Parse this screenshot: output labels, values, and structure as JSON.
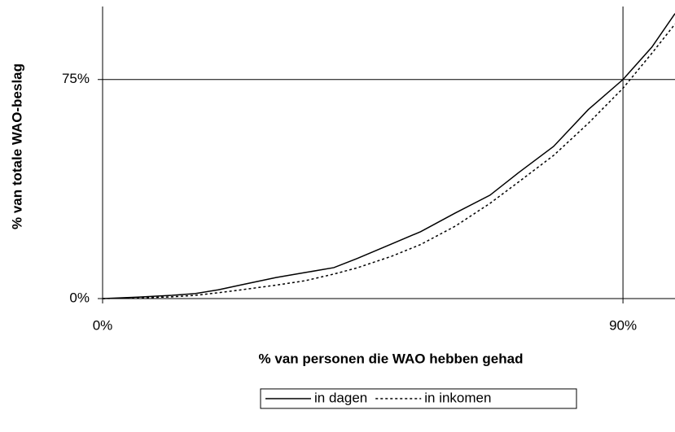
{
  "chart_data": {
    "type": "line",
    "x_label": "% van personen die WAO hebben gehad",
    "y_label": "% van totale WAO-beslag",
    "x": [
      0,
      6,
      12,
      16,
      20,
      24,
      30,
      35,
      40,
      44,
      50,
      55,
      61,
      67,
      72,
      78,
      84,
      90,
      95,
      99
    ],
    "series": [
      {
        "name": "in dagen",
        "color": "#000000",
        "dash": false,
        "values": [
          0,
          0.5,
          1.1,
          1.7,
          3,
          4.7,
          7.2,
          8.9,
          10.6,
          13.7,
          18.7,
          22.9,
          29.3,
          35.4,
          43.2,
          52.1,
          64.7,
          75,
          86.1,
          97.6
        ]
      },
      {
        "name": "in inkomen",
        "color": "#000000",
        "dash": true,
        "values": [
          0,
          0.2,
          0.6,
          1.1,
          2,
          3,
          4.6,
          6.1,
          8.4,
          10.5,
          14.5,
          18.5,
          24.8,
          32.6,
          40,
          49,
          60,
          72,
          84,
          94
        ]
      }
    ],
    "xlim": [
      0,
      99
    ],
    "ylim": [
      0,
      100
    ],
    "xticks": [
      {
        "value": 0,
        "label": "0%"
      },
      {
        "value": 90,
        "label": "90%"
      }
    ],
    "yticks": [
      {
        "value": 0,
        "label": "0%"
      },
      {
        "value": 75,
        "label": "75%"
      }
    ],
    "grid": true,
    "legend": "bottom"
  }
}
